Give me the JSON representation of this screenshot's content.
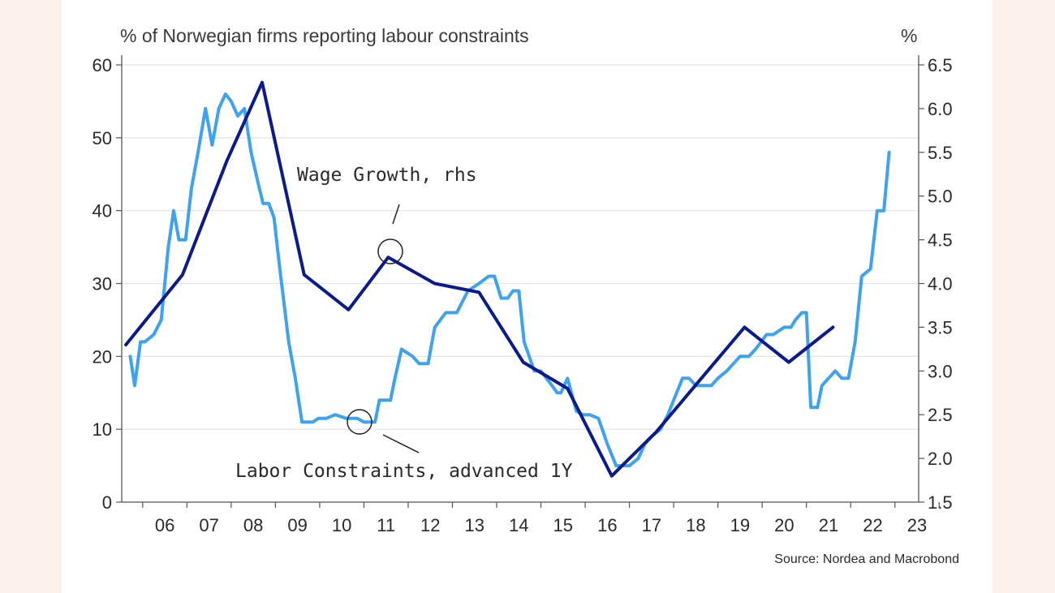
{
  "chart_data": {
    "type": "line",
    "title": "% of Norwegian firms reporting labour constraints",
    "right_axis_title": "%",
    "source": "Source: Nordea and Macrobond",
    "x_range": [
      2005.6,
      2023.5
    ],
    "x_tick_labels": [
      "06",
      "07",
      "08",
      "09",
      "10",
      "11",
      "12",
      "13",
      "14",
      "15",
      "16",
      "17",
      "18",
      "19",
      "20",
      "21",
      "22",
      "23"
    ],
    "left_axis": {
      "min": 0,
      "max": 60,
      "ticks": [
        0,
        10,
        20,
        30,
        40,
        50,
        60
      ]
    },
    "right_axis": {
      "min": 1.5,
      "max": 6.5,
      "ticks": [
        "1.5",
        "2.0",
        "2.5",
        "3.0",
        "3.5",
        "4.0",
        "4.5",
        "5.0",
        "5.5",
        "6.0",
        "6.5"
      ]
    },
    "grid": true,
    "colors": {
      "wage": "#0b1a8c",
      "labor": "#3ea3ef",
      "grid": "#e2e2e2",
      "axis": "#555555"
    },
    "annotations": {
      "wage_label": "Wage Growth, rhs",
      "labor_label": "Labor Constraints, advanced 1Y"
    },
    "series": [
      {
        "name": "Wage Growth, rhs",
        "axis": "right",
        "x": [
          2005.62,
          2006.9,
          2007.9,
          2008.7,
          2009.65,
          2010.65,
          2011.55,
          2012.6,
          2013.6,
          2014.6,
          2015.6,
          2016.6,
          2017.6,
          2018.6,
          2019.6,
          2020.6,
          2021.6
        ],
        "y": [
          3.3,
          4.1,
          5.4,
          6.3,
          4.1,
          3.7,
          4.3,
          4.0,
          3.9,
          3.1,
          2.8,
          1.8,
          2.3,
          2.9,
          3.5,
          3.1,
          3.5
        ]
      },
      {
        "name": "Labor Constraints, advanced 1Y",
        "axis": "left",
        "x": [
          2005.72,
          2005.82,
          2005.95,
          2006.05,
          2006.25,
          2006.42,
          2006.58,
          2006.7,
          2006.82,
          2006.97,
          2007.1,
          2007.25,
          2007.42,
          2007.57,
          2007.72,
          2007.87,
          2008.0,
          2008.15,
          2008.3,
          2008.45,
          2008.6,
          2008.72,
          2008.85,
          2008.97,
          2009.1,
          2009.2,
          2009.3,
          2009.45,
          2009.6,
          2009.75,
          2009.85,
          2009.97,
          2010.15,
          2010.35,
          2010.6,
          2010.85,
          2011.0,
          2011.25,
          2011.35,
          2011.6,
          2011.7,
          2011.85,
          2012.1,
          2012.25,
          2012.45,
          2012.6,
          2012.85,
          2013.1,
          2013.35,
          2013.6,
          2013.82,
          2013.95,
          2014.1,
          2014.25,
          2014.37,
          2014.5,
          2014.62,
          2014.85,
          2015.0,
          2015.25,
          2015.37,
          2015.45,
          2015.6,
          2015.8,
          2015.95,
          2016.1,
          2016.3,
          2016.5,
          2016.7,
          2016.87,
          2017.0,
          2017.2,
          2017.35,
          2017.5,
          2017.7,
          2017.87,
          2018.0,
          2018.2,
          2018.35,
          2018.5,
          2018.85,
          2019.0,
          2019.2,
          2019.35,
          2019.5,
          2019.7,
          2019.85,
          2020.1,
          2020.25,
          2020.5,
          2020.65,
          2020.75,
          2020.9,
          2021.0,
          2021.1,
          2021.25,
          2021.35,
          2021.5,
          2021.65,
          2021.8,
          2021.95,
          2022.1,
          2022.25,
          2022.45,
          2022.6,
          2022.75,
          2022.87
        ],
        "y": [
          20,
          16,
          22,
          22,
          23,
          25,
          35,
          40,
          36,
          36,
          43,
          48,
          54,
          49,
          54,
          56,
          55,
          53,
          54,
          48,
          44,
          41,
          41,
          39,
          32,
          27,
          22,
          17,
          11,
          11,
          11,
          11.5,
          11.5,
          12,
          11.5,
          11.5,
          11,
          11,
          14,
          14,
          17,
          21,
          20,
          19,
          19,
          24,
          26,
          26,
          29,
          30,
          31,
          31,
          28,
          28,
          29,
          29,
          22,
          18,
          18,
          16,
          15,
          15,
          17,
          12.5,
          12,
          12,
          11.5,
          8,
          5,
          5,
          5,
          6,
          8,
          9,
          10,
          12,
          14,
          17,
          17,
          16,
          16,
          17,
          18,
          19,
          20,
          20,
          21,
          23,
          23,
          24,
          24,
          25,
          26,
          26,
          13,
          13,
          16,
          17,
          18,
          17,
          17,
          22,
          31,
          32,
          40,
          40,
          48
        ]
      }
    ]
  }
}
